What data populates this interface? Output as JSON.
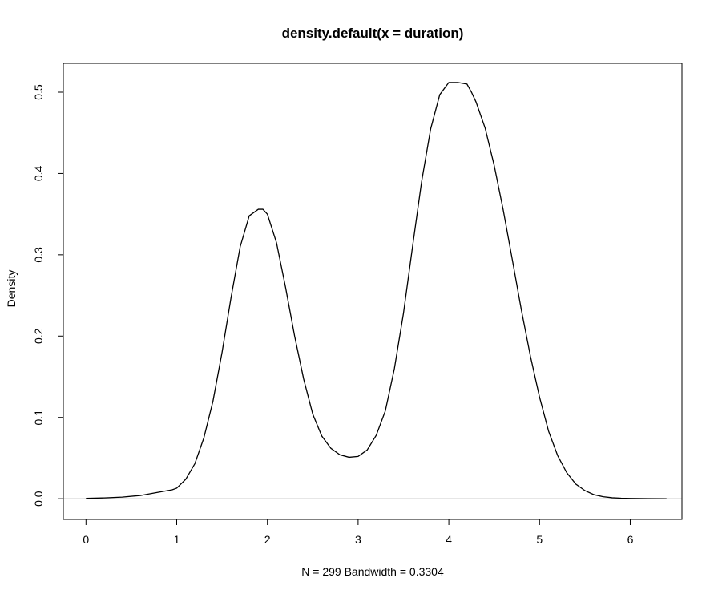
{
  "chart_data": {
    "type": "line",
    "title": "density.default(x = duration)",
    "xlabel": "N = 299   Bandwidth = 0.3304",
    "ylabel": "Density",
    "xlim": [
      -0.25,
      6.57
    ],
    "ylim": [
      -0.0255,
      0.5355
    ],
    "x_ticks": [
      0,
      1,
      2,
      3,
      4,
      5,
      6
    ],
    "y_ticks": [
      0.0,
      0.1,
      0.2,
      0.3,
      0.4,
      0.5
    ],
    "y_tick_labels": [
      "0.0",
      "0.1",
      "0.2",
      "0.3",
      "0.4",
      "0.5"
    ],
    "zero_line": true,
    "grid": false,
    "series": [
      {
        "x": [
          0.0,
          0.2,
          0.4,
          0.6,
          0.8,
          0.95,
          1.0,
          1.1,
          1.2,
          1.3,
          1.4,
          1.5,
          1.6,
          1.7,
          1.8,
          1.9,
          1.95,
          2.0,
          2.1,
          2.2,
          2.3,
          2.4,
          2.5,
          2.6,
          2.7,
          2.8,
          2.9,
          3.0,
          3.1,
          3.2,
          3.3,
          3.4,
          3.5,
          3.6,
          3.7,
          3.8,
          3.9,
          4.0,
          4.1,
          4.2,
          4.25,
          4.3,
          4.4,
          4.5,
          4.6,
          4.7,
          4.8,
          4.9,
          5.0,
          5.1,
          5.2,
          5.3,
          5.4,
          5.5,
          5.6,
          5.7,
          5.8,
          5.9,
          6.0,
          6.2,
          6.4
        ],
        "y": [
          0.0005,
          0.001,
          0.002,
          0.004,
          0.008,
          0.011,
          0.013,
          0.024,
          0.043,
          0.075,
          0.12,
          0.18,
          0.248,
          0.31,
          0.348,
          0.356,
          0.356,
          0.35,
          0.315,
          0.26,
          0.2,
          0.147,
          0.104,
          0.077,
          0.062,
          0.054,
          0.051,
          0.052,
          0.06,
          0.078,
          0.108,
          0.16,
          0.228,
          0.31,
          0.39,
          0.455,
          0.497,
          0.512,
          0.512,
          0.51,
          0.5,
          0.488,
          0.456,
          0.41,
          0.355,
          0.294,
          0.232,
          0.175,
          0.125,
          0.083,
          0.053,
          0.032,
          0.018,
          0.01,
          0.005,
          0.0025,
          0.0012,
          0.0006,
          0.0003,
          0.0001,
          0.0
        ]
      }
    ]
  }
}
